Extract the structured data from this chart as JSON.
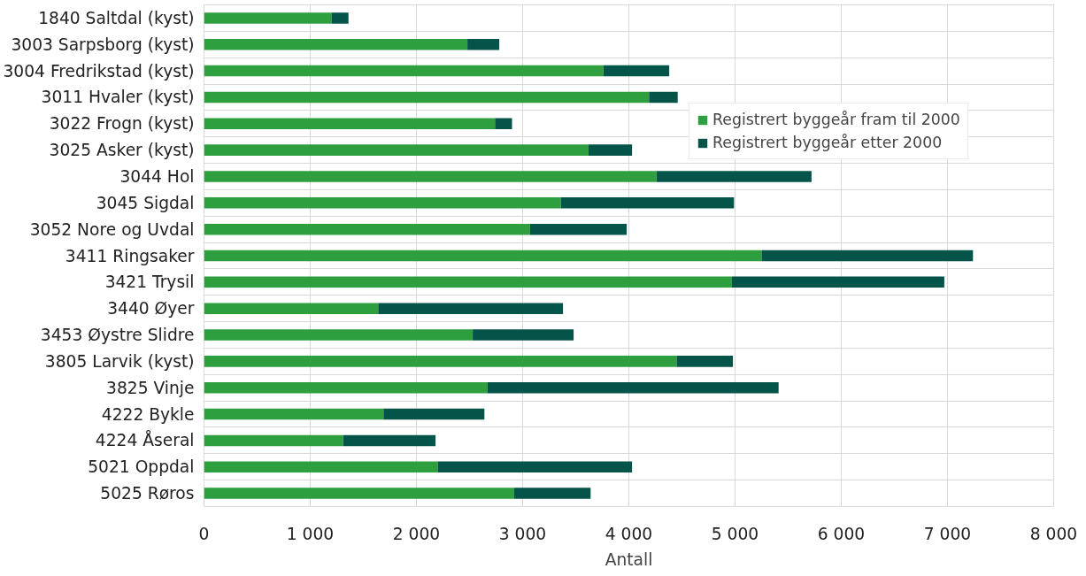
{
  "chart_data": {
    "type": "bar",
    "orientation": "horizontal",
    "stacked": true,
    "xlabel": "Antall",
    "categories": [
      "1840 Saltdal (kyst)",
      "3003 Sarpsborg (kyst)",
      "3004 Fredrikstad (kyst)",
      "3011 Hvaler (kyst)",
      "3022 Frogn (kyst)",
      "3025 Asker (kyst)",
      "3044 Hol",
      "3045 Sigdal",
      "3052 Nore og Uvdal",
      "3411 Ringsaker",
      "3421 Trysil",
      "3440 Øyer",
      "3453 Øystre Slidre",
      "3805 Larvik (kyst)",
      "3825 Vinje",
      "4222 Bykle",
      "4224 Åseral",
      "5021 Oppdal",
      "5025 Røros"
    ],
    "series": [
      {
        "name": "Registrert byggeår fram til 2000",
        "color": "#2e9f3e",
        "values": [
          1200,
          2480,
          3760,
          4190,
          2740,
          3620,
          4260,
          3360,
          3070,
          5250,
          4970,
          1640,
          2530,
          4450,
          2670,
          1690,
          1310,
          2200,
          2920
        ]
      },
      {
        "name": "Registrert byggeår etter 2000",
        "color": "#04544a",
        "values": [
          160,
          300,
          620,
          270,
          160,
          410,
          1460,
          1630,
          910,
          1990,
          2000,
          1740,
          950,
          530,
          2740,
          950,
          870,
          1830,
          720
        ]
      }
    ],
    "xlim": [
      0,
      8000
    ],
    "xticks": [
      0,
      {
        "value": 1000,
        "label": "1 000"
      },
      {
        "value": 2000,
        "label": "2 000"
      },
      {
        "value": 3000,
        "label": "3 000"
      },
      {
        "value": 4000,
        "label": "4 000"
      },
      {
        "value": 5000,
        "label": "5 000"
      },
      {
        "value": 6000,
        "label": "6 000"
      },
      {
        "value": 7000,
        "label": "7 000"
      },
      {
        "value": 8000,
        "label": "8 000"
      }
    ],
    "grid": true,
    "legend": "top right"
  }
}
